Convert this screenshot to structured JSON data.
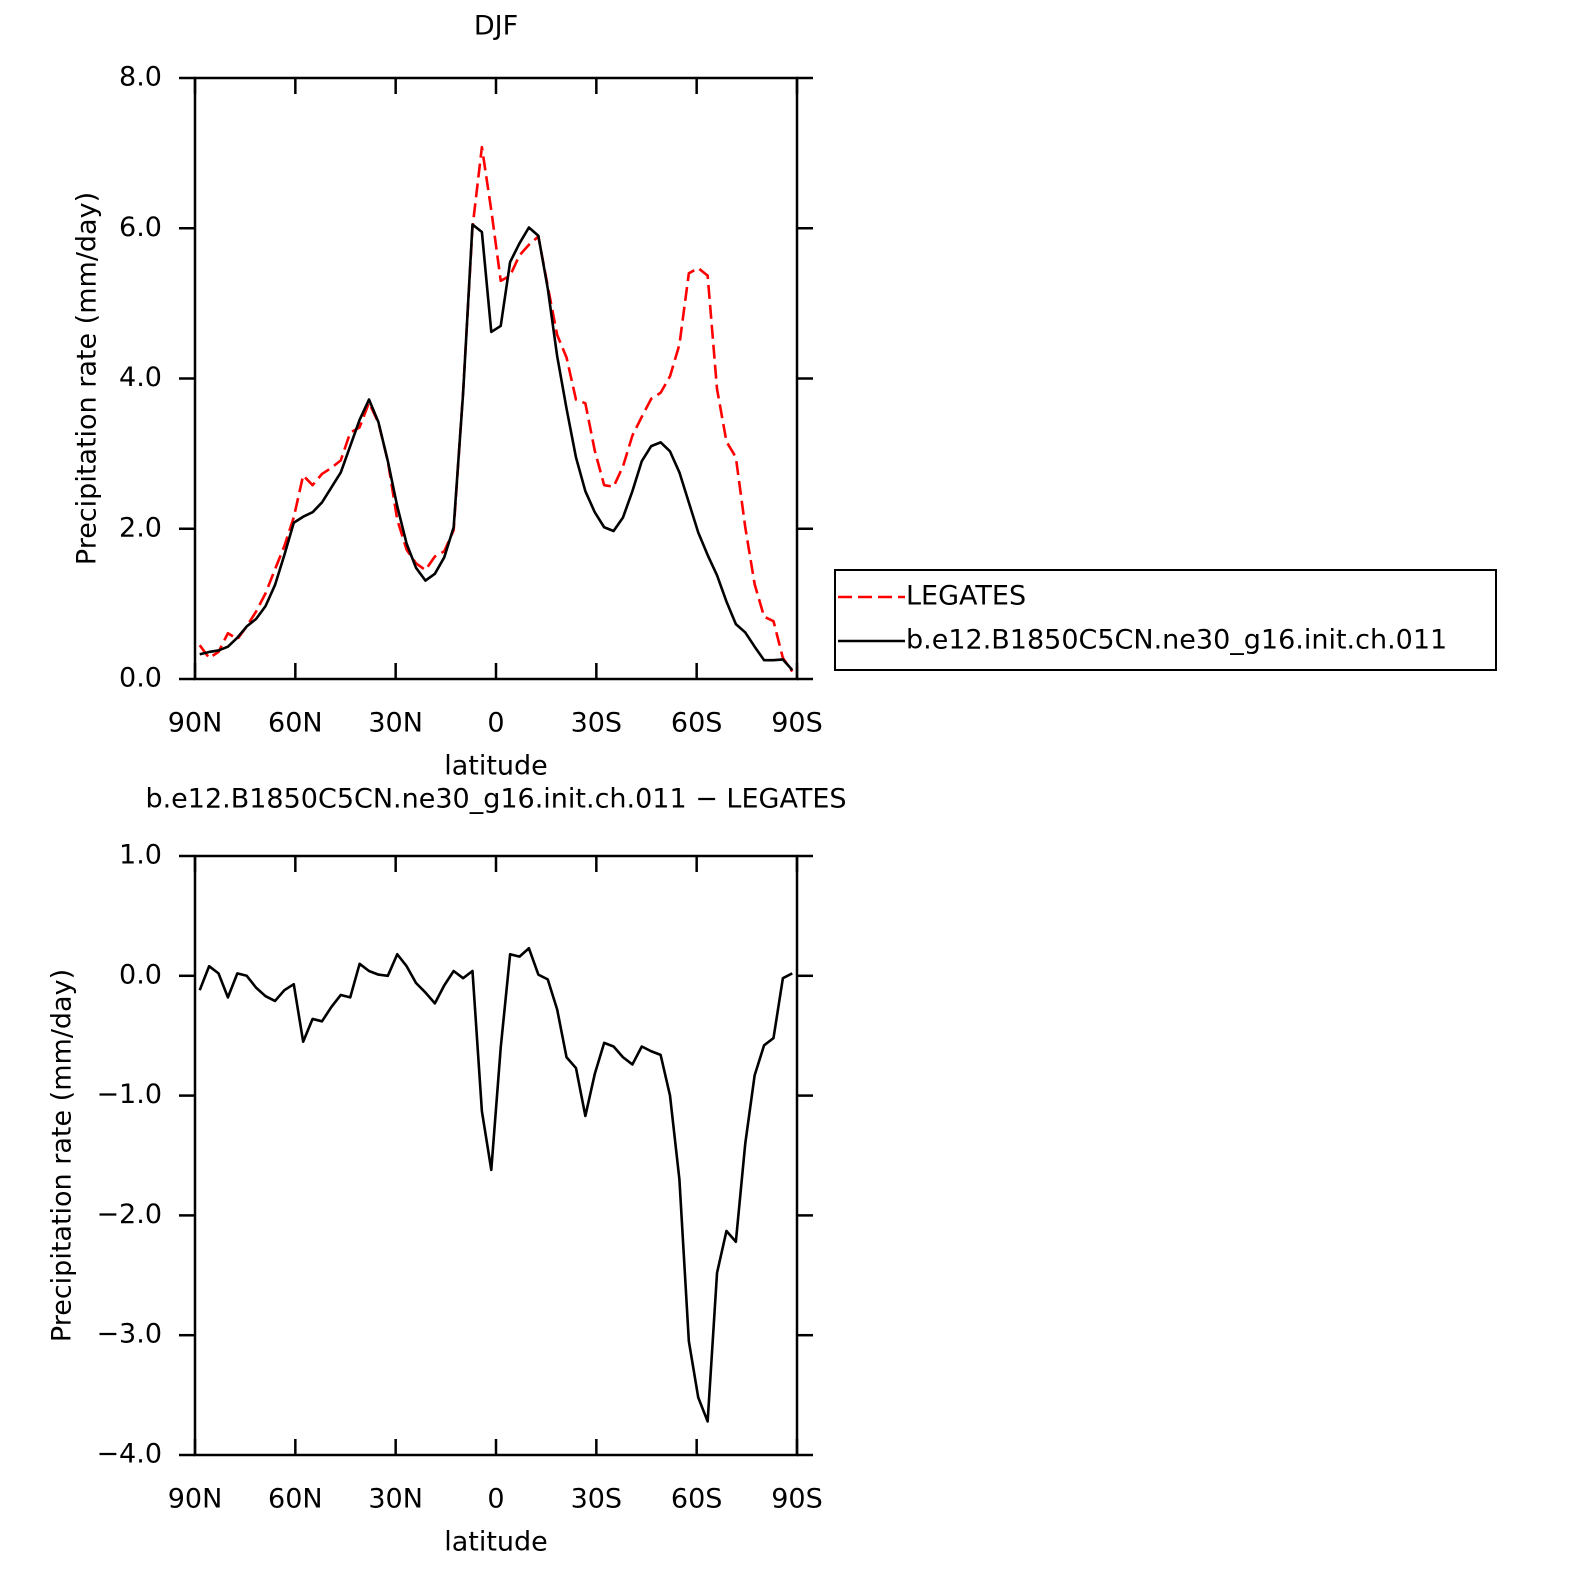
{
  "chart_data": [
    {
      "type": "line",
      "title": "DJF",
      "xlabel": "latitude",
      "ylabel": "Precipitation rate (mm/day)",
      "x": [
        88.59,
        85.78,
        82.97,
        80.16,
        77.34,
        74.53,
        71.72,
        68.91,
        66.09,
        63.28,
        60.47,
        57.66,
        54.84,
        52.03,
        49.22,
        46.41,
        43.59,
        40.78,
        37.97,
        35.16,
        32.34,
        29.53,
        26.72,
        23.91,
        21.09,
        18.28,
        15.47,
        12.66,
        9.84,
        7.03,
        4.22,
        1.41,
        -1.41,
        -4.22,
        -7.03,
        -9.84,
        -12.66,
        -15.47,
        -18.28,
        -21.09,
        -23.91,
        -26.72,
        -29.53,
        -32.34,
        -35.16,
        -37.97,
        -40.78,
        -43.59,
        -46.41,
        -49.22,
        -52.03,
        -54.84,
        -57.66,
        -60.47,
        -63.28,
        -66.09,
        -68.91,
        -71.72,
        -74.53,
        -77.34,
        -80.16,
        -82.97,
        -85.78,
        -88.59
      ],
      "series": [
        {
          "name": "LEGATES",
          "color": "#ff0000",
          "dash": true,
          "values": [
            0.45,
            0.28,
            0.36,
            0.61,
            0.53,
            0.7,
            0.9,
            1.14,
            1.46,
            1.77,
            2.15,
            2.71,
            2.58,
            2.73,
            2.81,
            2.91,
            3.28,
            3.35,
            3.68,
            3.41,
            2.9,
            2.12,
            1.72,
            1.54,
            1.45,
            1.63,
            1.7,
            1.98,
            3.82,
            6.01,
            7.08,
            6.24,
            5.3,
            5.37,
            5.64,
            5.78,
            5.89,
            5.23,
            4.58,
            4.28,
            3.72,
            3.67,
            3.04,
            2.58,
            2.56,
            2.83,
            3.24,
            3.49,
            3.73,
            3.81,
            4.03,
            4.45,
            5.4,
            5.47,
            5.37,
            3.86,
            3.16,
            2.95,
            2.02,
            1.26,
            0.83,
            0.77,
            0.28,
            0.1
          ]
        },
        {
          "name": "b.e12.B1850C5CN.ne30_g16.init.ch.011",
          "color": "#000000",
          "dash": false,
          "values": [
            0.33,
            0.36,
            0.38,
            0.43,
            0.55,
            0.7,
            0.8,
            0.97,
            1.25,
            1.65,
            2.08,
            2.16,
            2.22,
            2.35,
            2.55,
            2.75,
            3.1,
            3.45,
            3.72,
            3.42,
            2.9,
            2.3,
            1.8,
            1.48,
            1.31,
            1.4,
            1.62,
            2.02,
            3.8,
            6.05,
            5.95,
            4.62,
            4.7,
            5.55,
            5.8,
            6.01,
            5.9,
            5.2,
            4.3,
            3.6,
            2.95,
            2.5,
            2.22,
            2.02,
            1.97,
            2.15,
            2.5,
            2.9,
            3.1,
            3.15,
            3.03,
            2.75,
            2.35,
            1.95,
            1.65,
            1.38,
            1.03,
            0.73,
            0.62,
            0.43,
            0.25,
            0.25,
            0.26,
            0.12
          ]
        }
      ],
      "xlim": [
        90,
        -90
      ],
      "xticks": [
        {
          "value": 90,
          "label": "90N"
        },
        {
          "value": 60,
          "label": "60N"
        },
        {
          "value": 30,
          "label": "30N"
        },
        0,
        {
          "value": -30,
          "label": "30S"
        },
        {
          "value": -60,
          "label": "60S"
        },
        {
          "value": -90,
          "label": "90S"
        }
      ],
      "ylim": [
        0,
        8
      ],
      "yticks": [
        {
          "value": 0,
          "label": "0.0"
        },
        {
          "value": 2,
          "label": "2.0"
        },
        {
          "value": 4,
          "label": "4.0"
        },
        {
          "value": 6,
          "label": "6.0"
        },
        {
          "value": 8,
          "label": "8.0"
        }
      ],
      "legend": "right"
    },
    {
      "type": "line",
      "title": "b.e12.B1850C5CN.ne30_g16.init.ch.011 − LEGATES",
      "xlabel": "latitude",
      "ylabel": "Precipitation rate (mm/day)",
      "x": [
        88.59,
        85.78,
        82.97,
        80.16,
        77.34,
        74.53,
        71.72,
        68.91,
        66.09,
        63.28,
        60.47,
        57.66,
        54.84,
        52.03,
        49.22,
        46.41,
        43.59,
        40.78,
        37.97,
        35.16,
        32.34,
        29.53,
        26.72,
        23.91,
        21.09,
        18.28,
        15.47,
        12.66,
        9.84,
        7.03,
        4.22,
        1.41,
        -1.41,
        -4.22,
        -7.03,
        -9.84,
        -12.66,
        -15.47,
        -18.28,
        -21.09,
        -23.91,
        -26.72,
        -29.53,
        -32.34,
        -35.16,
        -37.97,
        -40.78,
        -43.59,
        -46.41,
        -49.22,
        -52.03,
        -54.84,
        -57.66,
        -60.47,
        -63.28,
        -66.09,
        -68.91,
        -71.72,
        -74.53,
        -77.34,
        -80.16,
        -82.97,
        -85.78,
        -88.59
      ],
      "values": [
        -0.12,
        0.08,
        0.02,
        -0.18,
        0.02,
        0.0,
        -0.1,
        -0.17,
        -0.21,
        -0.12,
        -0.07,
        -0.55,
        -0.36,
        -0.38,
        -0.26,
        -0.16,
        -0.18,
        0.1,
        0.04,
        0.01,
        0.0,
        0.18,
        0.08,
        -0.06,
        -0.14,
        -0.23,
        -0.08,
        0.04,
        -0.02,
        0.04,
        -1.13,
        -1.62,
        -0.6,
        0.18,
        0.16,
        0.23,
        0.01,
        -0.03,
        -0.28,
        -0.68,
        -0.77,
        -1.17,
        -0.82,
        -0.56,
        -0.59,
        -0.68,
        -0.74,
        -0.59,
        -0.63,
        -0.66,
        -1.0,
        -1.7,
        -3.05,
        -3.52,
        -3.72,
        -2.48,
        -2.13,
        -2.22,
        -1.4,
        -0.83,
        -0.58,
        -0.52,
        -0.02,
        0.02
      ],
      "color": "#000000",
      "xlim": [
        90,
        -90
      ],
      "xticks": [
        {
          "value": 90,
          "label": "90N"
        },
        {
          "value": 60,
          "label": "60N"
        },
        {
          "value": 30,
          "label": "30N"
        },
        0,
        {
          "value": -30,
          "label": "30S"
        },
        {
          "value": -60,
          "label": "60S"
        },
        {
          "value": -90,
          "label": "90S"
        }
      ],
      "ylim": [
        -4,
        1
      ],
      "yticks": [
        {
          "value": -4,
          "label": "−4.0"
        },
        {
          "value": -3,
          "label": "−3.0"
        },
        {
          "value": -2,
          "label": "−2.0"
        },
        {
          "value": -1,
          "label": "−1.0"
        },
        {
          "value": 0,
          "label": "0.0"
        },
        {
          "value": 1,
          "label": "1.0"
        }
      ]
    }
  ]
}
